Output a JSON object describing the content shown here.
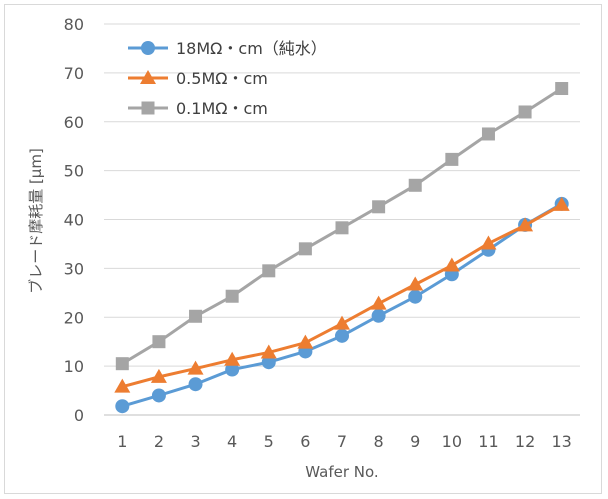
{
  "chart_data": {
    "type": "line",
    "title": "",
    "xlabel": "Wafer No.",
    "ylabel": "ブレード摩耗量 [μm]",
    "categories": [
      "1",
      "2",
      "3",
      "4",
      "5",
      "6",
      "7",
      "8",
      "9",
      "10",
      "11",
      "12",
      "13"
    ],
    "ylim": [
      0,
      80
    ],
    "yticks": [
      0,
      10,
      20,
      30,
      40,
      50,
      60,
      70,
      80
    ],
    "grid": true,
    "legend_position": "top-left",
    "series": [
      {
        "name": "18MΩ・cm（純水）",
        "color": "#5B9BD5",
        "marker": "circle",
        "values": [
          1.8,
          4.0,
          6.3,
          9.3,
          10.8,
          13.0,
          16.2,
          20.3,
          24.2,
          28.8,
          33.8,
          38.9,
          43.2
        ]
      },
      {
        "name": "0.5MΩ・cm",
        "color": "#ED7D31",
        "marker": "triangle",
        "values": [
          5.8,
          7.8,
          9.5,
          11.3,
          12.8,
          14.8,
          18.7,
          22.8,
          26.7,
          30.6,
          35.1,
          38.8,
          43.0
        ]
      },
      {
        "name": "0.1MΩ・cm",
        "color": "#A5A5A5",
        "marker": "square",
        "values": [
          10.5,
          15.0,
          20.2,
          24.3,
          29.5,
          34.0,
          38.3,
          42.6,
          47.0,
          52.3,
          57.5,
          62.0,
          66.8
        ]
      }
    ]
  }
}
